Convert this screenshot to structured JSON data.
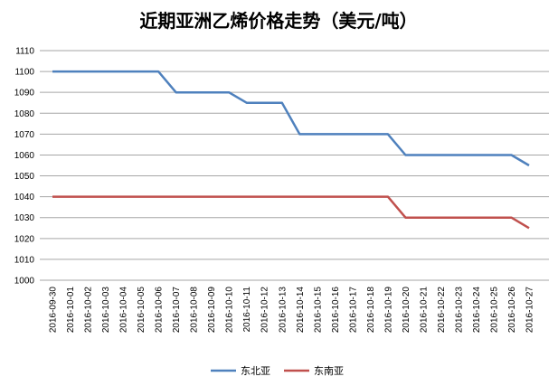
{
  "chart_data": {
    "type": "line",
    "title": "近期亚洲乙烯价格走势（美元/吨）",
    "xlabel": "",
    "ylabel": "",
    "ylim": [
      1000,
      1110
    ],
    "yticks": [
      1000,
      1010,
      1020,
      1030,
      1040,
      1050,
      1060,
      1070,
      1080,
      1090,
      1100,
      1110
    ],
    "grid": true,
    "legend_position": "bottom",
    "x": [
      "2016-09-30",
      "2016-10-01",
      "2016-10-02",
      "2016-10-03",
      "2016-10-04",
      "2016-10-05",
      "2016-10-06",
      "2016-10-07",
      "2016-10-08",
      "2016-10-09",
      "2016-10-10",
      "2016-10-11",
      "2016-10-12",
      "2016-10-13",
      "2016-10-14",
      "2016-10-15",
      "2016-10-16",
      "2016-10-17",
      "2016-10-18",
      "2016-10-19",
      "2016-10-20",
      "2016-10-21",
      "2016-10-22",
      "2016-10-23",
      "2016-10-24",
      "2016-10-25",
      "2016-10-26",
      "2016-10-27"
    ],
    "series": [
      {
        "name": "东北亚",
        "color": "#4f81bd",
        "values": [
          1100,
          1100,
          1100,
          1100,
          1100,
          1100,
          1100,
          1090,
          1090,
          1090,
          1090,
          1085,
          1085,
          1085,
          1070,
          1070,
          1070,
          1070,
          1070,
          1070,
          1060,
          1060,
          1060,
          1060,
          1060,
          1060,
          1060,
          1055
        ]
      },
      {
        "name": "东南亚",
        "color": "#c0504d",
        "values": [
          1040,
          1040,
          1040,
          1040,
          1040,
          1040,
          1040,
          1040,
          1040,
          1040,
          1040,
          1040,
          1040,
          1040,
          1040,
          1040,
          1040,
          1040,
          1040,
          1040,
          1030,
          1030,
          1030,
          1030,
          1030,
          1030,
          1030,
          1025
        ]
      }
    ]
  }
}
